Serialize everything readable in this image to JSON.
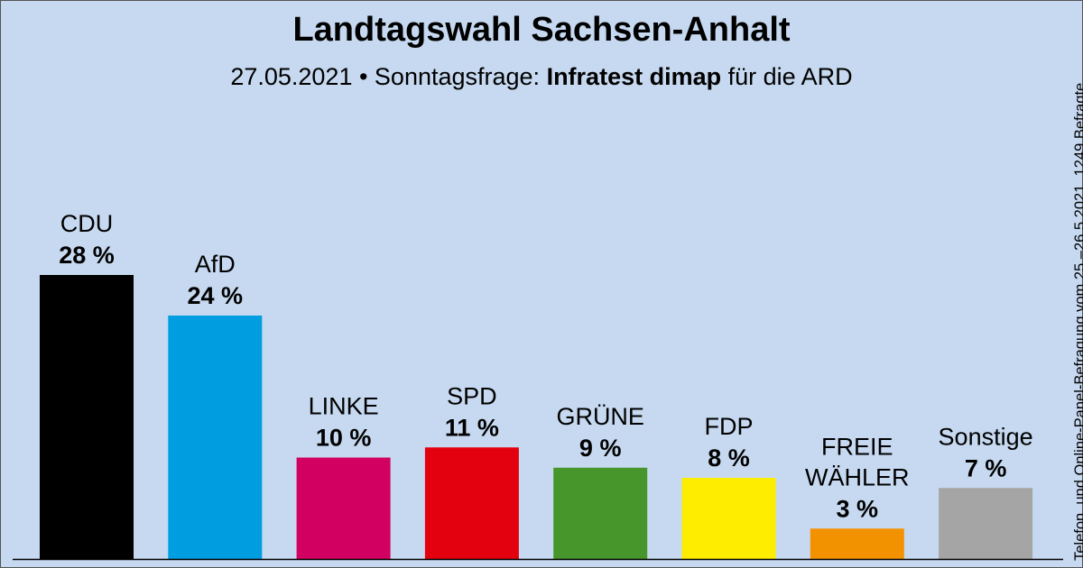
{
  "header": {
    "title": "Landtagswahl Sachsen-Anhalt",
    "subtitle_prefix": "27.05.2021 • Sonntagsfrage: ",
    "subtitle_source": "Infratest dimap",
    "subtitle_suffix": " für die ARD"
  },
  "side_note": "Telefon. und Online-Panel-Befragung vom 25.–26.5.2021, 1249 Befragte",
  "chart_data": {
    "type": "bar",
    "title": "Landtagswahl Sachsen-Anhalt",
    "subtitle": "27.05.2021 • Sonntagsfrage: Infratest dimap für die ARD",
    "categories": [
      "CDU",
      "AfD",
      "LINKE",
      "SPD",
      "GRÜNE",
      "FDP",
      "FREIE WÄHLER",
      "Sonstige"
    ],
    "category_label_lines": [
      [
        "CDU"
      ],
      [
        "AfD"
      ],
      [
        "LINKE"
      ],
      [
        "SPD"
      ],
      [
        "GRÜNE"
      ],
      [
        "FDP"
      ],
      [
        "FREIE",
        "WÄHLER"
      ],
      [
        "Sonstige"
      ]
    ],
    "values": [
      28,
      24,
      10,
      11,
      9,
      8,
      3,
      7
    ],
    "value_labels": [
      "28 %",
      "24 %",
      "10 %",
      "11 %",
      "9 %",
      "8 %",
      "3 %",
      "7 %"
    ],
    "colors": [
      "#000000",
      "#009ee0",
      "#d20060",
      "#e3000f",
      "#46962b",
      "#ffed00",
      "#f39200",
      "#a5a5a5"
    ],
    "unit": "%",
    "xlabel": "",
    "ylabel": "",
    "grid": false,
    "legend": "none"
  }
}
